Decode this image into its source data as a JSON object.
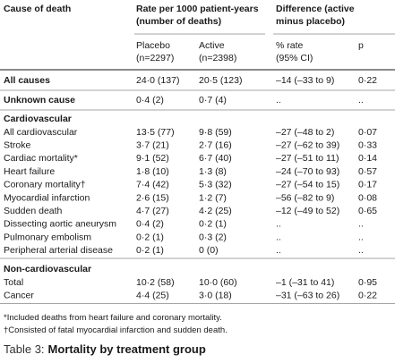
{
  "table": {
    "header": {
      "cause": "Cause of death",
      "rate": [
        "Rate per 1000 patient-years",
        "(number of deaths)"
      ],
      "difference": [
        "Difference (active",
        "minus placebo)"
      ]
    },
    "subheader": {
      "placebo": [
        "Placebo",
        "(n=2297)"
      ],
      "active": [
        "Active",
        "(n=2398)"
      ],
      "rate": [
        "% rate",
        "(95% CI)"
      ],
      "p": "p"
    },
    "summary_rows": [
      [
        "All causes",
        "24·0 (137)",
        "20·5 (123)",
        "–14 (–33 to 9)",
        "0·22"
      ],
      [
        "Unknown cause",
        "0·4 (2)",
        "0·7 (4)",
        "..",
        ".."
      ]
    ],
    "sections": [
      {
        "heading": "Cardiovascular",
        "rows": [
          [
            "All cardiovascular",
            "13·5 (77)",
            "9·8 (59)",
            "–27 (–48 to 2)",
            "0·07"
          ],
          [
            "Stroke",
            "3·7 (21)",
            "2·7 (16)",
            "–27 (–62 to 39)",
            "0·33"
          ],
          [
            "Cardiac mortality*",
            "9·1 (52)",
            "6·7 (40)",
            "–27 (–51 to 11)",
            "0·14"
          ],
          [
            "Heart failure",
            "1·8 (10)",
            "1·3 (8)",
            "–24 (–70 to 93)",
            "0·57"
          ],
          [
            "Coronary mortality†",
            "7·4 (42)",
            "5·3 (32)",
            "–27 (–54 to 15)",
            "0·17"
          ],
          [
            "Myocardial infarction",
            "2·6 (15)",
            "1·2 (7)",
            "–56 (–82 to 9)",
            "0·08"
          ],
          [
            "Sudden death",
            "4·7 (27)",
            "4·2 (25)",
            "–12 (–49 to 52)",
            "0·65"
          ],
          [
            "Dissecting aortic aneurysm",
            "0·4 (2)",
            "0·2 (1)",
            "..",
            ".."
          ],
          [
            "Pulmonary embolism",
            "0·2 (1)",
            "0·3 (2)",
            "..",
            ".."
          ],
          [
            "Peripheral arterial disease",
            "0·2 (1)",
            "0 (0)",
            "..",
            ".."
          ]
        ]
      },
      {
        "heading": "Non-cardiovascular",
        "rows": [
          [
            "Total",
            "10·2 (58)",
            "10·0 (60)",
            "–1 (–31 to 41)",
            "0·95"
          ],
          [
            "Cancer",
            "4·4 (25)",
            "3·0 (18)",
            "–31 (–63 to 26)",
            "0·22"
          ]
        ]
      }
    ],
    "footnotes": [
      "*Included deaths from heart failure and coronary mortality.",
      "†Consisted of fatal myocardial infarction and sudden death."
    ],
    "caption": {
      "label": "Table 3:",
      "title": "Mortality by treatment group"
    }
  }
}
